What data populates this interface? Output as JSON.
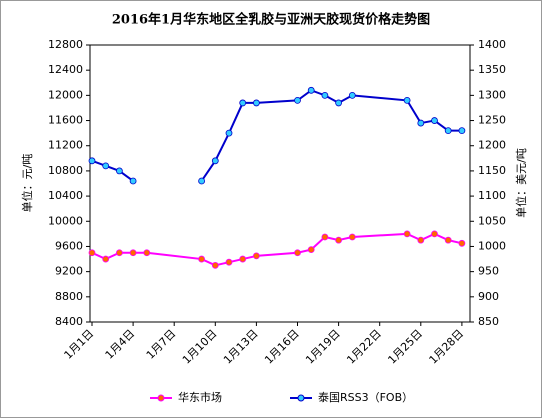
{
  "chart_data": {
    "type": "line",
    "title": "2016年1月华东地区全乳胶与亚洲天胶现货价格走势图",
    "y_label": "单位：元/吨",
    "y2_label": "单位：美元/吨",
    "x": [
      "1月1日",
      "1月2日",
      "1月3日",
      "1月4日",
      "1月5日",
      "1月9日",
      "1月10日",
      "1月11日",
      "1月12日",
      "1月13日",
      "1月16日",
      "1月17日",
      "1月18日",
      "1月19日",
      "1月20日",
      "1月24日",
      "1月25日",
      "1月26日",
      "1月27日",
      "1月28日"
    ],
    "xticks": [
      "1月1日",
      "1月4日",
      "1月7日",
      "1月10日",
      "1月13日",
      "1月16日",
      "1月19日",
      "1月22日",
      "1月25日",
      "1月28日"
    ],
    "ylim": [
      8400,
      12800
    ],
    "yticks": [
      8400,
      8800,
      9200,
      9600,
      10000,
      10400,
      10800,
      11200,
      11600,
      12000,
      12400,
      12800
    ],
    "y2lim": [
      850,
      1400
    ],
    "y2ticks": [
      850,
      900,
      950,
      1000,
      1050,
      1100,
      1150,
      1200,
      1250,
      1300,
      1350,
      1400
    ],
    "legend": "bottom",
    "series": [
      {
        "name": "华东市场",
        "color": "#ff00ff",
        "marker_color": "#ff6600",
        "axis": "y",
        "values": [
          9500,
          9400,
          9500,
          9500,
          9500,
          9400,
          9300,
          9350,
          9400,
          9450,
          9500,
          9550,
          9750,
          9700,
          9750,
          9800,
          9700,
          9800,
          9700,
          9650
        ]
      },
      {
        "name": "泰国RSS3（FOB）",
        "color": "#0000cc",
        "marker_color": "#33ccff",
        "axis": "y2",
        "values": [
          1170,
          1160,
          1150,
          1130,
          null,
          1130,
          1170,
          1225,
          1285,
          1285,
          1290,
          1310,
          1300,
          1285,
          1300,
          1290,
          1245,
          1250,
          1230,
          1230
        ]
      }
    ]
  }
}
